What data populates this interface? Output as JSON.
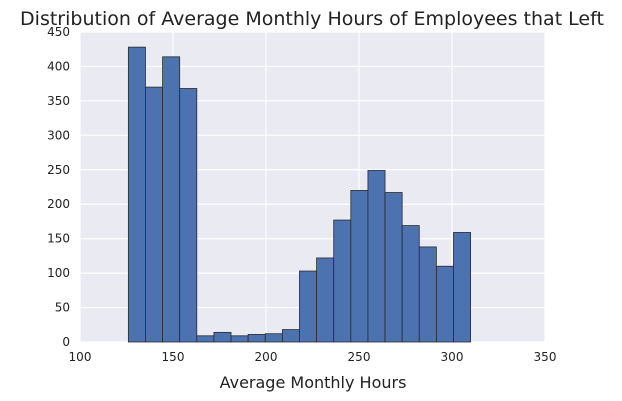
{
  "chart_data": {
    "type": "bar",
    "title": "Distribution of Average Monthly Hours of Employees that Left",
    "xlabel": "Average Monthly Hours",
    "ylabel": "",
    "xlim": [
      100,
      350
    ],
    "ylim": [
      0,
      450
    ],
    "xticks": [
      "100",
      "150",
      "200",
      "250",
      "300",
      "350"
    ],
    "yticks": [
      "0",
      "50",
      "100",
      "150",
      "200",
      "250",
      "300",
      "350",
      "400",
      "450"
    ],
    "grid": true,
    "bin_start": 126,
    "bin_end": 310,
    "bins": [
      {
        "x0": 126.0,
        "x1": 135.2,
        "count": 428
      },
      {
        "x0": 135.2,
        "x1": 144.4,
        "count": 370
      },
      {
        "x0": 144.4,
        "x1": 153.6,
        "count": 414
      },
      {
        "x0": 153.6,
        "x1": 162.8,
        "count": 368
      },
      {
        "x0": 162.8,
        "x1": 172.0,
        "count": 9
      },
      {
        "x0": 172.0,
        "x1": 181.2,
        "count": 14
      },
      {
        "x0": 181.2,
        "x1": 190.4,
        "count": 9
      },
      {
        "x0": 190.4,
        "x1": 199.6,
        "count": 11
      },
      {
        "x0": 199.6,
        "x1": 208.8,
        "count": 12
      },
      {
        "x0": 208.8,
        "x1": 218.0,
        "count": 18
      },
      {
        "x0": 218.0,
        "x1": 227.2,
        "count": 103
      },
      {
        "x0": 227.2,
        "x1": 236.4,
        "count": 122
      },
      {
        "x0": 236.4,
        "x1": 245.6,
        "count": 177
      },
      {
        "x0": 245.6,
        "x1": 254.8,
        "count": 220
      },
      {
        "x0": 254.8,
        "x1": 264.0,
        "count": 249
      },
      {
        "x0": 264.0,
        "x1": 273.2,
        "count": 217
      },
      {
        "x0": 273.2,
        "x1": 282.4,
        "count": 169
      },
      {
        "x0": 282.4,
        "x1": 291.6,
        "count": 138
      },
      {
        "x0": 291.6,
        "x1": 300.8,
        "count": 110
      },
      {
        "x0": 300.8,
        "x1": 310.0,
        "count": 159
      }
    ],
    "colors": {
      "bar_fill": "#4c72b0",
      "bar_edge": "#2b2b2b",
      "plot_background": "#eaeaf2",
      "grid": "#ffffff"
    }
  }
}
